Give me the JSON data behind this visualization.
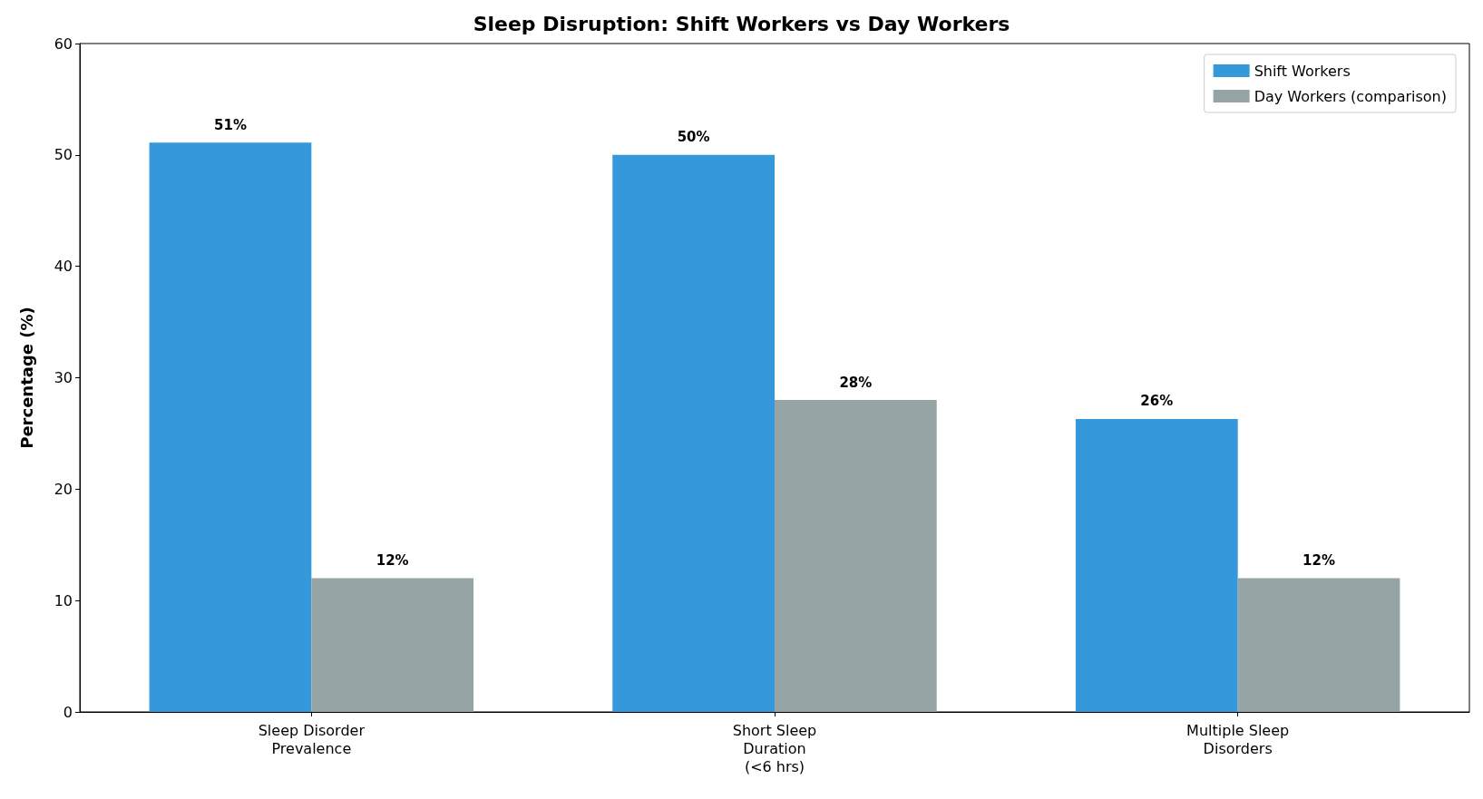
{
  "chart_data": {
    "type": "bar",
    "title": "Sleep Disruption: Shift Workers vs Day Workers",
    "ylabel": "Percentage (%)",
    "categories": [
      "Sleep Disorder\nPrevalence",
      "Short Sleep\nDuration\n(<6 hrs)",
      "Multiple Sleep\nDisorders"
    ],
    "series": [
      {
        "name": "Shift Workers",
        "color": "#3498db",
        "values": [
          51.1,
          50,
          26.3
        ],
        "value_labels": [
          "51%",
          "50%",
          "26%"
        ]
      },
      {
        "name": "Day Workers (comparison)",
        "color": "#95a5a6",
        "values": [
          12,
          28,
          12
        ],
        "value_labels": [
          "12%",
          "28%",
          "12%"
        ]
      }
    ],
    "ylim": [
      0,
      60
    ],
    "yticks": [
      0,
      10,
      20,
      30,
      40,
      50,
      60
    ],
    "grid": false,
    "legend": "top right"
  }
}
